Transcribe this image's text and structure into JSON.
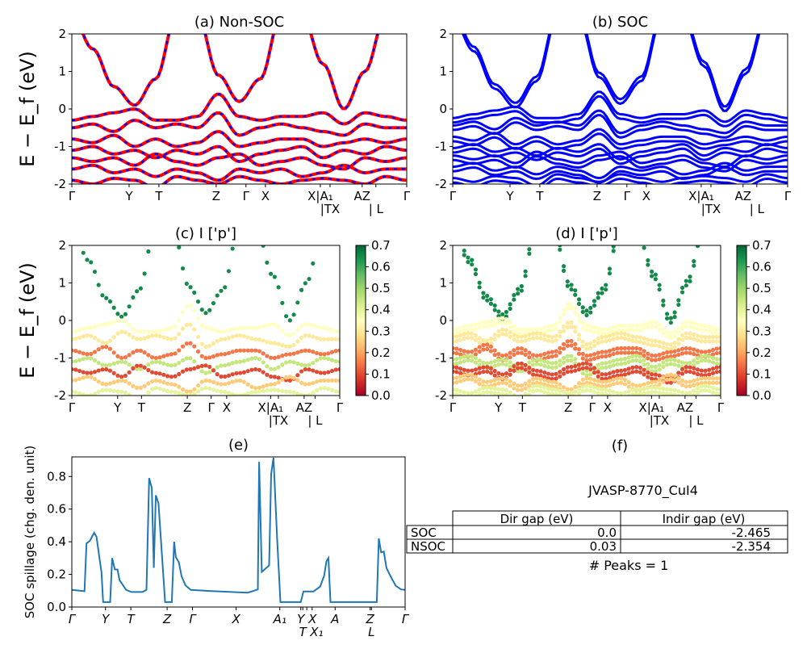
{
  "colors": {
    "nonsoc_solid": "#ff0000",
    "nonsoc_dash": "#0000ff",
    "soc": "#0000ff",
    "spillage": "#1f77b4",
    "colormap": [
      "#a50026",
      "#d73027",
      "#f46d43",
      "#fdae61",
      "#fee08b",
      "#ffffbf",
      "#d9ef8b",
      "#a6d96a",
      "#66bd63",
      "#1a9850",
      "#006837"
    ]
  },
  "chart_data": [
    {
      "id": "a",
      "type": "line",
      "title": "(a) Non-SOC",
      "ylabel": "E − E_f (eV)",
      "ylim": [
        -2,
        2
      ],
      "yticks": [
        "-2",
        "-1",
        "0",
        "1",
        "2"
      ],
      "ytick_values": [
        -2,
        -1,
        0,
        1,
        2
      ]
    },
    {
      "id": "b",
      "type": "line",
      "title": "(b) SOC",
      "ylim": [
        -2,
        2
      ],
      "yticks": [
        "-2",
        "-1",
        "0",
        "1",
        "2"
      ],
      "ytick_values": [
        -2,
        -1,
        0,
        1,
        2
      ],
      "soc_split": 0.06
    },
    {
      "id": "c",
      "type": "scatter",
      "title": "(c)  I ['p']",
      "ylabel": "E − E_f (eV)",
      "ylim": [
        -2,
        2
      ],
      "yticks": [
        "-2",
        "-1",
        "0",
        "1",
        "2"
      ],
      "ytick_values": [
        -2,
        -1,
        0,
        1,
        2
      ],
      "colorbar": {
        "range": [
          0,
          0.7
        ],
        "ticks": [
          "0.0",
          "0.1",
          "0.2",
          "0.3",
          "0.4",
          "0.5",
          "0.6",
          "0.7"
        ]
      }
    },
    {
      "id": "d",
      "type": "scatter",
      "title": "(d) I ['p']",
      "ylim": [
        -2,
        2
      ],
      "yticks": [
        "-2",
        "-1",
        "0",
        "1",
        "2"
      ],
      "ytick_values": [
        -2,
        -1,
        0,
        1,
        2
      ],
      "colorbar": {
        "range": [
          0,
          0.7
        ],
        "ticks": [
          "0.0",
          "0.1",
          "0.2",
          "0.3",
          "0.4",
          "0.5",
          "0.6",
          "0.7"
        ]
      }
    },
    {
      "id": "e",
      "type": "line",
      "title": "(e)",
      "ylabel": "SOC spillage (chg. den. unit)",
      "ylim": [
        0,
        0.92
      ],
      "yticks": [
        "0.0",
        "0.2",
        "0.4",
        "0.6",
        "0.8"
      ],
      "ytick_values": [
        0,
        0.2,
        0.4,
        0.6,
        0.8
      ],
      "xticks": [
        {
          "label": "Γ",
          "k": 0
        },
        {
          "label": "Y",
          "k": 0.101
        },
        {
          "label": "T",
          "k": 0.177
        },
        {
          "label": "Z",
          "k": 0.286
        },
        {
          "label": "Γ",
          "k": 0.362
        },
        {
          "label": "X",
          "k": 0.493
        },
        {
          "label": "A₁",
          "k": 0.624
        },
        {
          "label": "Y",
          "k": 0.687
        },
        {
          "label": "T",
          "k": 0.693
        },
        {
          "label": "X",
          "k": 0.705
        },
        {
          "label": "X₁",
          "k": 0.721
        },
        {
          "label": "A",
          "k": 0.79
        },
        {
          "label": "Z",
          "k": 0.895
        },
        {
          "label": "L",
          "k": 0.899
        },
        {
          "label": "Γ",
          "k": 1
        }
      ],
      "points": [
        [
          0,
          0.105
        ],
        [
          0.038,
          0.097
        ],
        [
          0.044,
          0.39
        ],
        [
          0.054,
          0.405
        ],
        [
          0.067,
          0.455
        ],
        [
          0.074,
          0.43
        ],
        [
          0.089,
          0.21
        ],
        [
          0.094,
          0.03
        ],
        [
          0.115,
          0.03
        ],
        [
          0.121,
          0.3
        ],
        [
          0.129,
          0.23
        ],
        [
          0.137,
          0.23
        ],
        [
          0.143,
          0.165
        ],
        [
          0.163,
          0.105
        ],
        [
          0.179,
          0.092
        ],
        [
          0.212,
          0.092
        ],
        [
          0.224,
          0.105
        ],
        [
          0.232,
          0.79
        ],
        [
          0.24,
          0.73
        ],
        [
          0.246,
          0.24
        ],
        [
          0.252,
          0.685
        ],
        [
          0.26,
          0.635
        ],
        [
          0.28,
          0.03
        ],
        [
          0.3,
          0.03
        ],
        [
          0.307,
          0.4
        ],
        [
          0.312,
          0.305
        ],
        [
          0.321,
          0.275
        ],
        [
          0.329,
          0.19
        ],
        [
          0.341,
          0.133
        ],
        [
          0.357,
          0.105
        ],
        [
          0.398,
          0.1
        ],
        [
          0.527,
          0.088
        ],
        [
          0.547,
          0.1
        ],
        [
          0.558,
          0.108
        ],
        [
          0.562,
          0.89
        ],
        [
          0.57,
          0.215
        ],
        [
          0.592,
          0.255
        ],
        [
          0.598,
          0.815
        ],
        [
          0.605,
          0.915
        ],
        [
          0.616,
          0.42
        ],
        [
          0.626,
          0.03
        ],
        [
          0.687,
          0.03
        ],
        [
          0.695,
          0.095
        ],
        [
          0.725,
          0.095
        ],
        [
          0.745,
          0.125
        ],
        [
          0.757,
          0.19
        ],
        [
          0.764,
          0.28
        ],
        [
          0.77,
          0.3
        ],
        [
          0.776,
          0.03
        ],
        [
          0.915,
          0.03
        ],
        [
          0.921,
          0.42
        ],
        [
          0.928,
          0.335
        ],
        [
          0.936,
          0.34
        ],
        [
          0.944,
          0.24
        ],
        [
          0.956,
          0.19
        ],
        [
          0.972,
          0.13
        ],
        [
          0.988,
          0.108
        ],
        [
          1,
          0.105
        ]
      ]
    }
  ],
  "band_xticks": [
    {
      "label": "Γ",
      "k": 0
    },
    {
      "label": "Y",
      "k": 0.171
    },
    {
      "label": "T",
      "k": 0.26
    },
    {
      "label": "Z",
      "k": 0.431
    },
    {
      "label": "Γ",
      "k": 0.52
    },
    {
      "label": "X",
      "k": 0.578
    },
    {
      "label": "X|A₁",
      "k": 0.742
    },
    {
      "label": "|TX",
      "k": 0.771
    },
    {
      "label": "AZ",
      "k": 0.867
    },
    {
      "label": "| L",
      "k": 0.908
    },
    {
      "label": "Γ",
      "k": 1
    }
  ],
  "bands": [
    {
      "weight": 0.65,
      "e": [
        2.5,
        1.6,
        0.6,
        0.1,
        0.8,
        2.5,
        2.5,
        0.9,
        0.2,
        0.8,
        2.5,
        2.5,
        1.2,
        0.0,
        1.0,
        2.5,
        2.5
      ]
    },
    {
      "weight": 0.35,
      "e": [
        -0.3,
        -0.2,
        -0.1,
        0.0,
        -0.3,
        -0.3,
        -0.2,
        0.4,
        -0.2,
        -0.3,
        -0.2,
        -0.2,
        -0.1,
        -0.4,
        -0.1,
        -0.2,
        -0.3
      ]
    },
    {
      "weight": 0.3,
      "e": [
        -0.5,
        -0.4,
        -0.6,
        -0.3,
        -0.5,
        -0.4,
        -0.5,
        -0.1,
        -0.7,
        -0.5,
        -0.4,
        -0.5,
        -0.6,
        -0.7,
        -0.4,
        -0.5,
        -0.5
      ]
    },
    {
      "weight": 0.15,
      "e": [
        -0.8,
        -0.9,
        -0.7,
        -1.0,
        -0.8,
        -1.0,
        -0.9,
        -0.6,
        -1.0,
        -0.9,
        -0.8,
        -0.8,
        -1.0,
        -0.9,
        -0.8,
        -0.9,
        -0.8
      ]
    },
    {
      "weight": 0.45,
      "e": [
        -1.1,
        -1.0,
        -1.2,
        -1.1,
        -1.3,
        -1.1,
        -1.2,
        -1.0,
        -1.4,
        -1.2,
        -1.1,
        -1.0,
        -1.3,
        -1.1,
        -1.2,
        -1.0,
        -1.1
      ]
    },
    {
      "weight": 0.1,
      "e": [
        -1.3,
        -1.4,
        -1.3,
        -1.5,
        -1.2,
        -1.4,
        -1.5,
        -1.3,
        -1.2,
        -1.5,
        -1.4,
        -1.3,
        -1.5,
        -1.6,
        -1.3,
        -1.4,
        -1.3
      ]
    },
    {
      "weight": 0.25,
      "e": [
        -1.6,
        -1.5,
        -1.7,
        -1.6,
        -1.8,
        -1.6,
        -1.7,
        -1.9,
        -1.6,
        -1.7,
        -1.6,
        -1.8,
        -1.7,
        -1.5,
        -1.7,
        -1.6,
        -1.6
      ]
    },
    {
      "weight": 0.4,
      "e": [
        -1.9,
        -2.0,
        -1.85,
        -1.9,
        -2.1,
        -1.8,
        -1.9,
        -2.0,
        -1.8,
        -1.9,
        -2.0,
        -1.9,
        -1.85,
        -1.9,
        -2.0,
        -1.8,
        -1.9
      ]
    }
  ],
  "panel_f": {
    "title": "(f)",
    "material": "JVASP-8770_CuI4",
    "table": {
      "columns": [
        "Dir gap (eV)",
        "Indir gap (eV)"
      ],
      "rows": [
        {
          "label": "SOC",
          "dir": "0.0",
          "indir": "-2.465"
        },
        {
          "label": "NSOC",
          "dir": "0.03",
          "indir": "-2.354"
        }
      ]
    },
    "peaks": "# Peaks = 1"
  }
}
